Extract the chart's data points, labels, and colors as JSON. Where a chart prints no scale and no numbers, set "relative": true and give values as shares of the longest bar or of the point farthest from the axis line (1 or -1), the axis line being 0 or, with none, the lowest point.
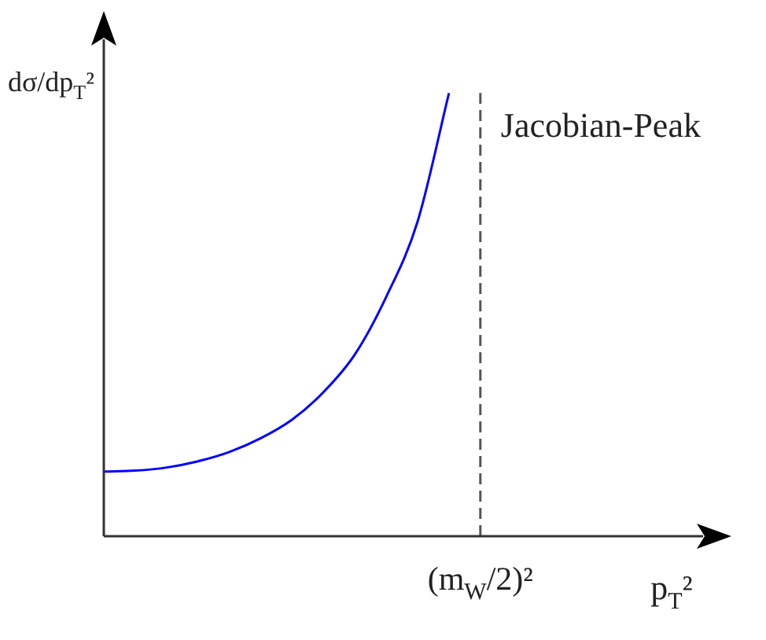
{
  "chart_data": {
    "type": "line",
    "relative": true,
    "xlabel": "p$_{T}$²",
    "ylabel": "dσ/dp$_{T}$²",
    "categories": [
      null,
      null,
      null,
      null,
      null,
      null,
      null,
      null,
      null,
      null,
      null,
      null,
      null,
      null,
      null,
      null,
      null,
      null,
      null,
      null,
      null
    ],
    "series": [
      {
        "color": "#0000ff",
        "values": [
          0.146,
          0.148,
          0.155,
          0.169,
          0.19,
          0.221,
          0.263,
          0.325,
          0.41,
          0.54,
          0.71,
          1,
          null,
          null,
          null,
          null,
          null,
          null,
          null,
          null,
          null
        ]
      }
    ],
    "annotations": [
      "(m$_{W}$/2)²",
      "Jacobian-Peak"
    ]
  }
}
